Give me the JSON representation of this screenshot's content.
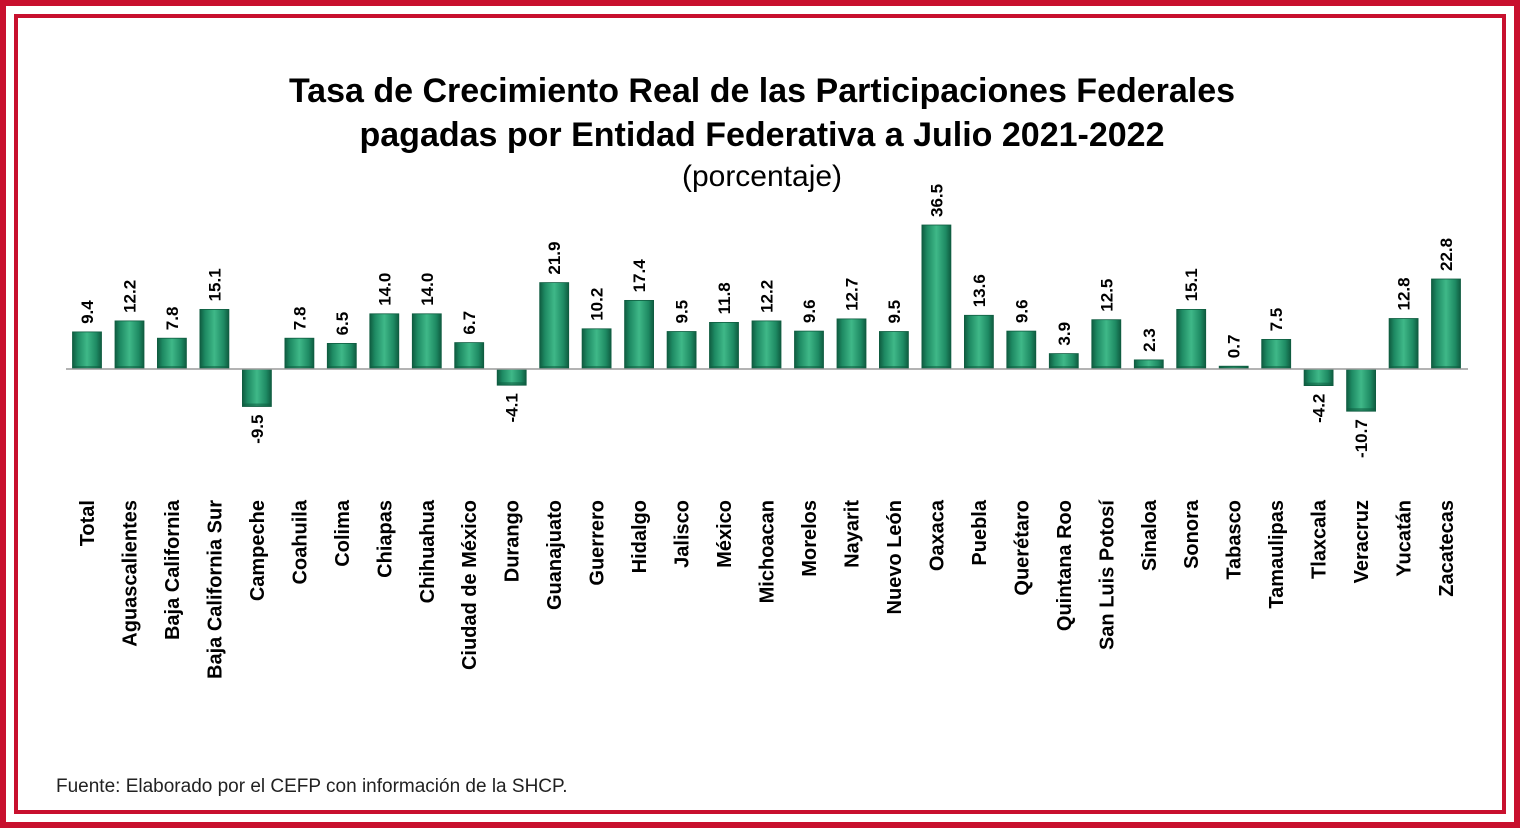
{
  "chart_data": {
    "type": "bar",
    "title_line1": "Tasa de Crecimiento Real de las Participaciones Federales",
    "title_line2": "pagadas por Entidad Federativa a Julio 2021-2022",
    "subtitle": "(porcentaje)",
    "xlabel": "",
    "ylabel": "",
    "ylim": [
      -10.7,
      36.5
    ],
    "categories": [
      "Total",
      "Aguascalientes",
      "Baja California",
      "Baja California Sur",
      "Campeche",
      "Coahuila",
      "Colima",
      "Chiapas",
      "Chihuahua",
      "Ciudad de México",
      "Durango",
      "Guanajuato",
      "Guerrero",
      "Hidalgo",
      "Jalisco",
      "México",
      "Michoacan",
      "Morelos",
      "Nayarit",
      "Nuevo León",
      "Oaxaca",
      "Puebla",
      "Querétaro",
      "Quintana Roo",
      "San Luis Potosí",
      "Sinaloa",
      "Sonora",
      "Tabasco",
      "Tamaulipas",
      "Tlaxcala",
      "Veracruz",
      "Yucatán",
      "Zacatecas"
    ],
    "values": [
      9.4,
      12.2,
      7.8,
      15.1,
      -9.5,
      7.8,
      6.5,
      14.0,
      14.0,
      6.7,
      -4.1,
      21.9,
      10.2,
      17.4,
      9.5,
      11.8,
      12.2,
      9.6,
      12.7,
      9.5,
      36.5,
      13.6,
      9.6,
      3.9,
      12.5,
      2.3,
      15.1,
      0.7,
      7.5,
      -4.2,
      -10.7,
      12.8,
      22.8
    ],
    "value_labels": [
      "9.4",
      "12.2",
      "7.8",
      "15.1",
      "-9.5",
      "7.8",
      "6.5",
      "14.0",
      "14.0",
      "6.7",
      "-4.1",
      "21.9",
      "10.2",
      "17.4",
      "9.5",
      "11.8",
      "12.2",
      "9.6",
      "12.7",
      "9.5",
      "36.5",
      "13.6",
      "9.6",
      "3.9",
      "12.5",
      "2.3",
      "15.1",
      "0.7",
      "7.5",
      "-4.2",
      "-10.7",
      "12.8",
      "22.8"
    ],
    "grid": false,
    "legend": "none"
  },
  "source": "Fuente: Elaborado por el CEFP con información de la SHCP.",
  "colors": {
    "frame": "#c8102e",
    "bar_main": "#1e8a63",
    "bar_light": "#3fb888",
    "bar_dark": "#0f5c40",
    "axis": "#9a9a9a"
  }
}
